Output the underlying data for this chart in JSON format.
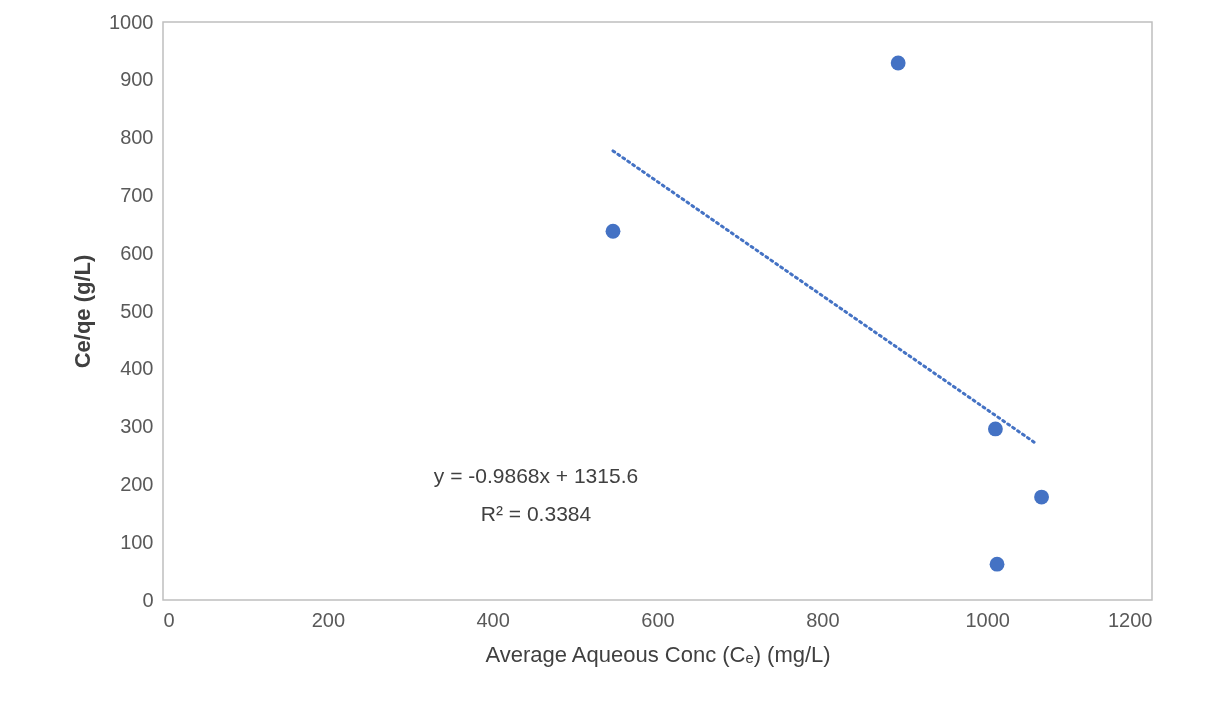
{
  "chart_data": {
    "type": "scatter",
    "xlabel": "Average Aqueous Conc (Cₑ)  (mg/L)",
    "ylabel": "Ce/qe (g/L)",
    "xlim": [
      0,
      1200
    ],
    "xticks": [
      0,
      200,
      400,
      600,
      800,
      1000,
      1200
    ],
    "ylim": [
      0,
      1000
    ],
    "yticks": [
      0,
      100,
      200,
      300,
      400,
      500,
      600,
      700,
      800,
      900,
      1000
    ],
    "grid": false,
    "marker": "circle",
    "series": [
      {
        "color": "#4472c4",
        "x": [
          546,
          892,
          1010,
          1066,
          1012
        ],
        "values": [
          638,
          929,
          296,
          178,
          62
        ]
      },
      {
        "type": "line",
        "color": "#4472c4",
        "line_style": "dotted",
        "marker": "none",
        "x": [
          546,
          1058
        ],
        "values": [
          777,
          272
        ]
      }
    ],
    "annotations": [
      "y = -0.9868x + 1315.6",
      "R² = 0.3384"
    ]
  }
}
